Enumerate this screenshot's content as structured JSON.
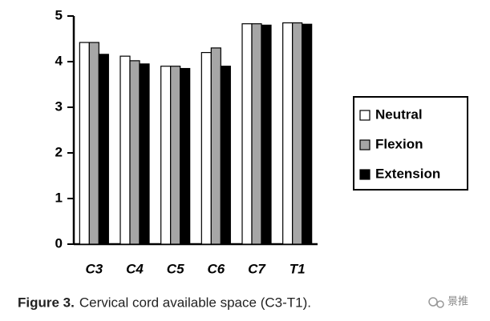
{
  "chart_data": {
    "type": "bar",
    "categories": [
      "C3",
      "C4",
      "C5",
      "C6",
      "C7",
      "T1"
    ],
    "series": [
      {
        "name": "Neutral",
        "color": "#ffffff",
        "values": [
          4.42,
          4.12,
          3.9,
          4.2,
          4.83,
          4.85
        ]
      },
      {
        "name": "Flexion",
        "color": "#a6a6a6",
        "values": [
          4.42,
          4.02,
          3.9,
          4.3,
          4.83,
          4.85
        ]
      },
      {
        "name": "Extension",
        "color": "#000000",
        "values": [
          4.16,
          3.95,
          3.85,
          3.9,
          4.8,
          4.82
        ]
      }
    ],
    "ylim": [
      0,
      5
    ],
    "yticks": [
      0,
      1,
      2,
      3,
      4,
      5
    ],
    "grid": false,
    "legend": "right",
    "caption_label": "Figure 3.",
    "caption": "Cervical cord available space (C3-T1).",
    "watermark": "景推"
  }
}
